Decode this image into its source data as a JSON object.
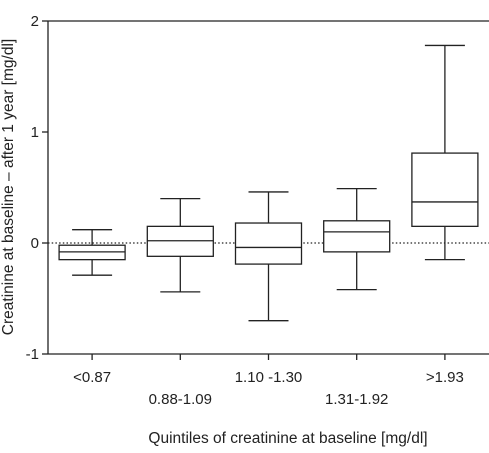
{
  "chart_data": {
    "type": "box",
    "xlabel": "Quintiles of creatinine at baseline [mg/dl]",
    "ylabel": "Creatinine at baseline – after 1 year [mg/dl]",
    "ylim": [
      -1,
      2
    ],
    "yticks": [
      -1,
      0,
      1,
      2
    ],
    "ytick_labels": [
      "-1",
      "0",
      "1",
      "2"
    ],
    "reference_line": {
      "y": 0,
      "style": "dotted"
    },
    "grid": false,
    "categories": [
      "<0.87",
      "0.88-1.09",
      "1.10 -1.30",
      "1.31-1.92",
      ">1.93"
    ],
    "boxes": [
      {
        "category": "<0.87",
        "whisker_low": -0.29,
        "q1": -0.15,
        "median": -0.08,
        "q3": -0.02,
        "whisker_high": 0.12
      },
      {
        "category": "0.88-1.09",
        "whisker_low": -0.44,
        "q1": -0.12,
        "median": 0.02,
        "q3": 0.15,
        "whisker_high": 0.4
      },
      {
        "category": "1.10 -1.30",
        "whisker_low": -0.7,
        "q1": -0.19,
        "median": -0.04,
        "q3": 0.18,
        "whisker_high": 0.46
      },
      {
        "category": "1.31-1.92",
        "whisker_low": -0.42,
        "q1": -0.08,
        "median": 0.1,
        "q3": 0.2,
        "whisker_high": 0.49
      },
      {
        "category": ">1.93",
        "whisker_low": -0.15,
        "q1": 0.15,
        "median": 0.37,
        "q3": 0.81,
        "whisker_high": 1.78
      }
    ]
  }
}
